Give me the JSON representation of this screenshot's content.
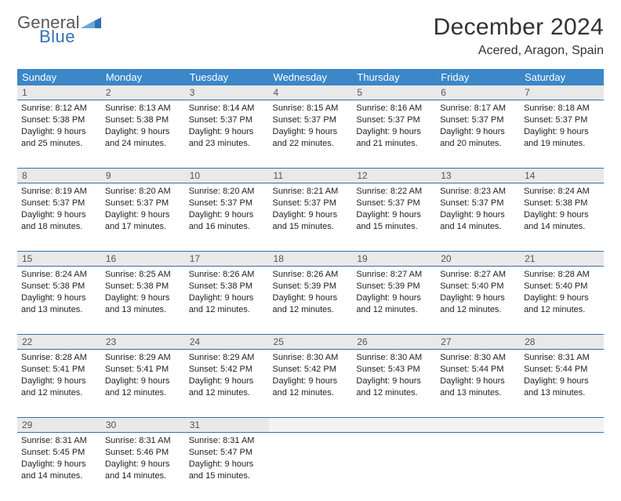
{
  "brand": {
    "line1": "General",
    "line2": "Blue",
    "tri_color": "#2f72b6",
    "text_gray": "#585858"
  },
  "title": "December 2024",
  "location": "Acered, Aragon, Spain",
  "colors": {
    "header_bg": "#3b87c8",
    "border": "#3b6fa3",
    "daynum_bg": "#e9e9e9",
    "empty_bg": "#f3f3f3"
  },
  "weekdays": [
    "Sunday",
    "Monday",
    "Tuesday",
    "Wednesday",
    "Thursday",
    "Friday",
    "Saturday"
  ],
  "weeks": [
    [
      {
        "n": "1",
        "sr": "8:12 AM",
        "ss": "5:38 PM",
        "dl": "9 hours and 25 minutes."
      },
      {
        "n": "2",
        "sr": "8:13 AM",
        "ss": "5:38 PM",
        "dl": "9 hours and 24 minutes."
      },
      {
        "n": "3",
        "sr": "8:14 AM",
        "ss": "5:37 PM",
        "dl": "9 hours and 23 minutes."
      },
      {
        "n": "4",
        "sr": "8:15 AM",
        "ss": "5:37 PM",
        "dl": "9 hours and 22 minutes."
      },
      {
        "n": "5",
        "sr": "8:16 AM",
        "ss": "5:37 PM",
        "dl": "9 hours and 21 minutes."
      },
      {
        "n": "6",
        "sr": "8:17 AM",
        "ss": "5:37 PM",
        "dl": "9 hours and 20 minutes."
      },
      {
        "n": "7",
        "sr": "8:18 AM",
        "ss": "5:37 PM",
        "dl": "9 hours and 19 minutes."
      }
    ],
    [
      {
        "n": "8",
        "sr": "8:19 AM",
        "ss": "5:37 PM",
        "dl": "9 hours and 18 minutes."
      },
      {
        "n": "9",
        "sr": "8:20 AM",
        "ss": "5:37 PM",
        "dl": "9 hours and 17 minutes."
      },
      {
        "n": "10",
        "sr": "8:20 AM",
        "ss": "5:37 PM",
        "dl": "9 hours and 16 minutes."
      },
      {
        "n": "11",
        "sr": "8:21 AM",
        "ss": "5:37 PM",
        "dl": "9 hours and 15 minutes."
      },
      {
        "n": "12",
        "sr": "8:22 AM",
        "ss": "5:37 PM",
        "dl": "9 hours and 15 minutes."
      },
      {
        "n": "13",
        "sr": "8:23 AM",
        "ss": "5:37 PM",
        "dl": "9 hours and 14 minutes."
      },
      {
        "n": "14",
        "sr": "8:24 AM",
        "ss": "5:38 PM",
        "dl": "9 hours and 14 minutes."
      }
    ],
    [
      {
        "n": "15",
        "sr": "8:24 AM",
        "ss": "5:38 PM",
        "dl": "9 hours and 13 minutes."
      },
      {
        "n": "16",
        "sr": "8:25 AM",
        "ss": "5:38 PM",
        "dl": "9 hours and 13 minutes."
      },
      {
        "n": "17",
        "sr": "8:26 AM",
        "ss": "5:38 PM",
        "dl": "9 hours and 12 minutes."
      },
      {
        "n": "18",
        "sr": "8:26 AM",
        "ss": "5:39 PM",
        "dl": "9 hours and 12 minutes."
      },
      {
        "n": "19",
        "sr": "8:27 AM",
        "ss": "5:39 PM",
        "dl": "9 hours and 12 minutes."
      },
      {
        "n": "20",
        "sr": "8:27 AM",
        "ss": "5:40 PM",
        "dl": "9 hours and 12 minutes."
      },
      {
        "n": "21",
        "sr": "8:28 AM",
        "ss": "5:40 PM",
        "dl": "9 hours and 12 minutes."
      }
    ],
    [
      {
        "n": "22",
        "sr": "8:28 AM",
        "ss": "5:41 PM",
        "dl": "9 hours and 12 minutes."
      },
      {
        "n": "23",
        "sr": "8:29 AM",
        "ss": "5:41 PM",
        "dl": "9 hours and 12 minutes."
      },
      {
        "n": "24",
        "sr": "8:29 AM",
        "ss": "5:42 PM",
        "dl": "9 hours and 12 minutes."
      },
      {
        "n": "25",
        "sr": "8:30 AM",
        "ss": "5:42 PM",
        "dl": "9 hours and 12 minutes."
      },
      {
        "n": "26",
        "sr": "8:30 AM",
        "ss": "5:43 PM",
        "dl": "9 hours and 12 minutes."
      },
      {
        "n": "27",
        "sr": "8:30 AM",
        "ss": "5:44 PM",
        "dl": "9 hours and 13 minutes."
      },
      {
        "n": "28",
        "sr": "8:31 AM",
        "ss": "5:44 PM",
        "dl": "9 hours and 13 minutes."
      }
    ],
    [
      {
        "n": "29",
        "sr": "8:31 AM",
        "ss": "5:45 PM",
        "dl": "9 hours and 14 minutes."
      },
      {
        "n": "30",
        "sr": "8:31 AM",
        "ss": "5:46 PM",
        "dl": "9 hours and 14 minutes."
      },
      {
        "n": "31",
        "sr": "8:31 AM",
        "ss": "5:47 PM",
        "dl": "9 hours and 15 minutes."
      },
      null,
      null,
      null,
      null
    ]
  ],
  "labels": {
    "sunrise": "Sunrise: ",
    "sunset": "Sunset: ",
    "daylight": "Daylight: "
  }
}
